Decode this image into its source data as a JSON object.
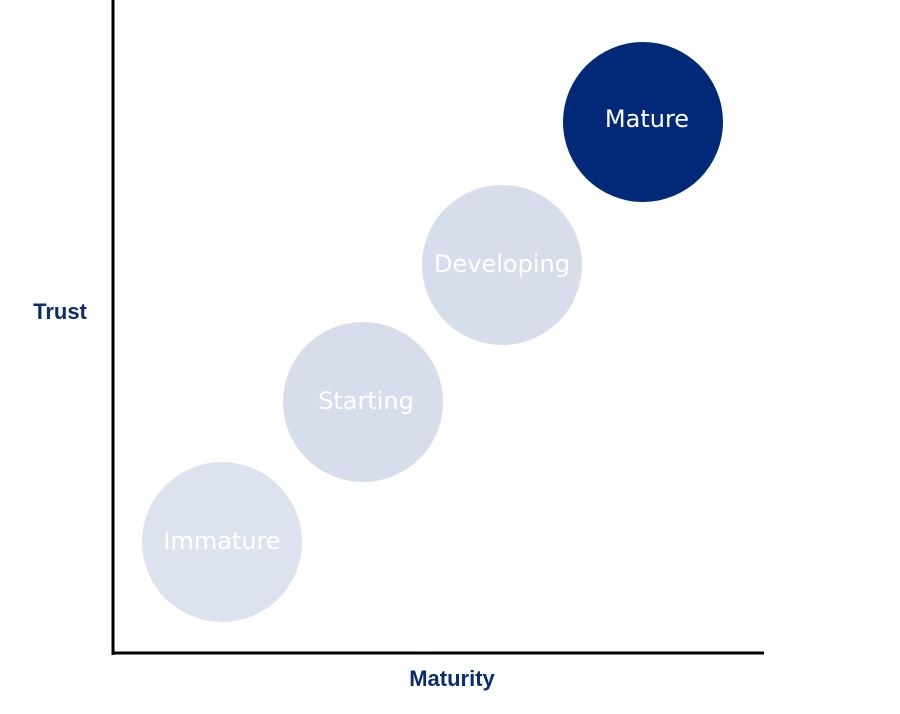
{
  "axes": {
    "y_label": "Trust",
    "x_label": "Maturity"
  },
  "nodes": [
    {
      "label": "Immature"
    },
    {
      "label": "Starting"
    },
    {
      "label": "Developing"
    },
    {
      "label": "Mature"
    }
  ]
}
